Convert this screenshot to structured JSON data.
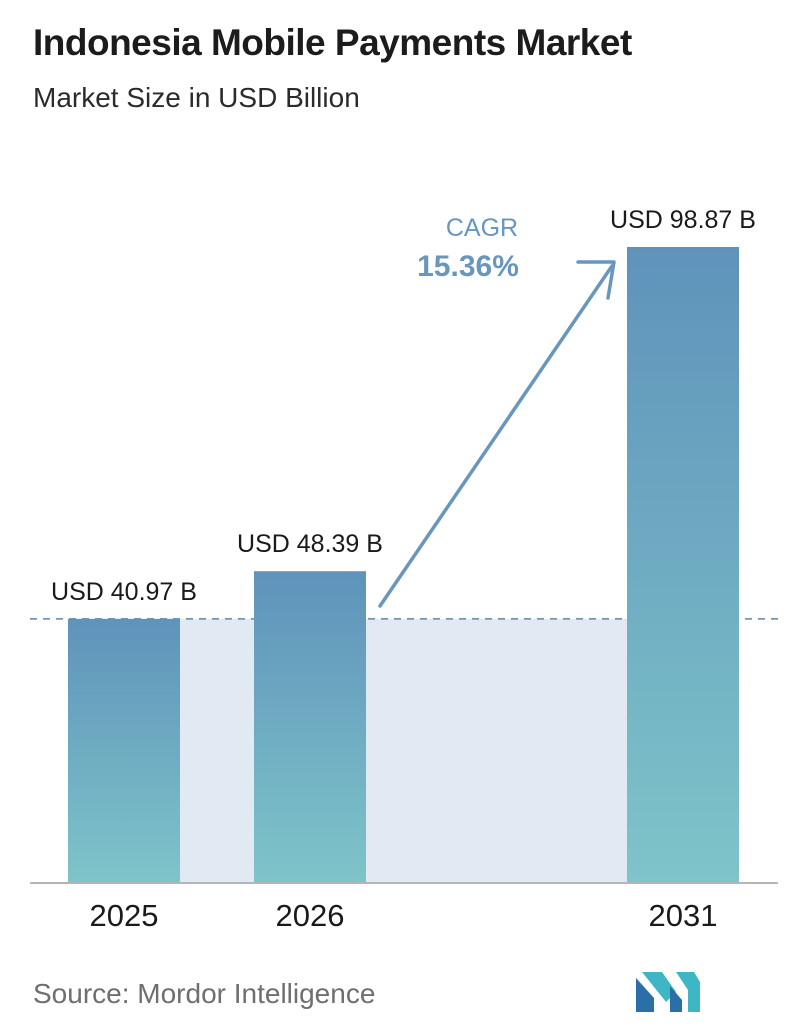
{
  "title": "Indonesia Mobile Payments Market",
  "subtitle": "Market Size in USD Billion",
  "source": "Source:  Mordor Intelligence",
  "colors": {
    "bar_top": "#5f93bb",
    "bar_bottom": "#7ec4c9",
    "band": "#e1e9f2",
    "dashed_line": "#5f86a8",
    "arrow": "#6896bd",
    "axis": "#b5b5b5"
  },
  "chart_data": {
    "type": "bar",
    "categories": [
      "2025",
      "2026",
      "2031"
    ],
    "values": [
      40.97,
      48.39,
      98.87
    ],
    "data_labels": [
      "USD 40.97 B",
      "USD 48.39 B",
      "USD 98.87 B"
    ],
    "annotation": {
      "label": "CAGR",
      "value": "15.36%"
    },
    "ylim": [
      0,
      98.87
    ],
    "grid": false,
    "legend": "none"
  }
}
